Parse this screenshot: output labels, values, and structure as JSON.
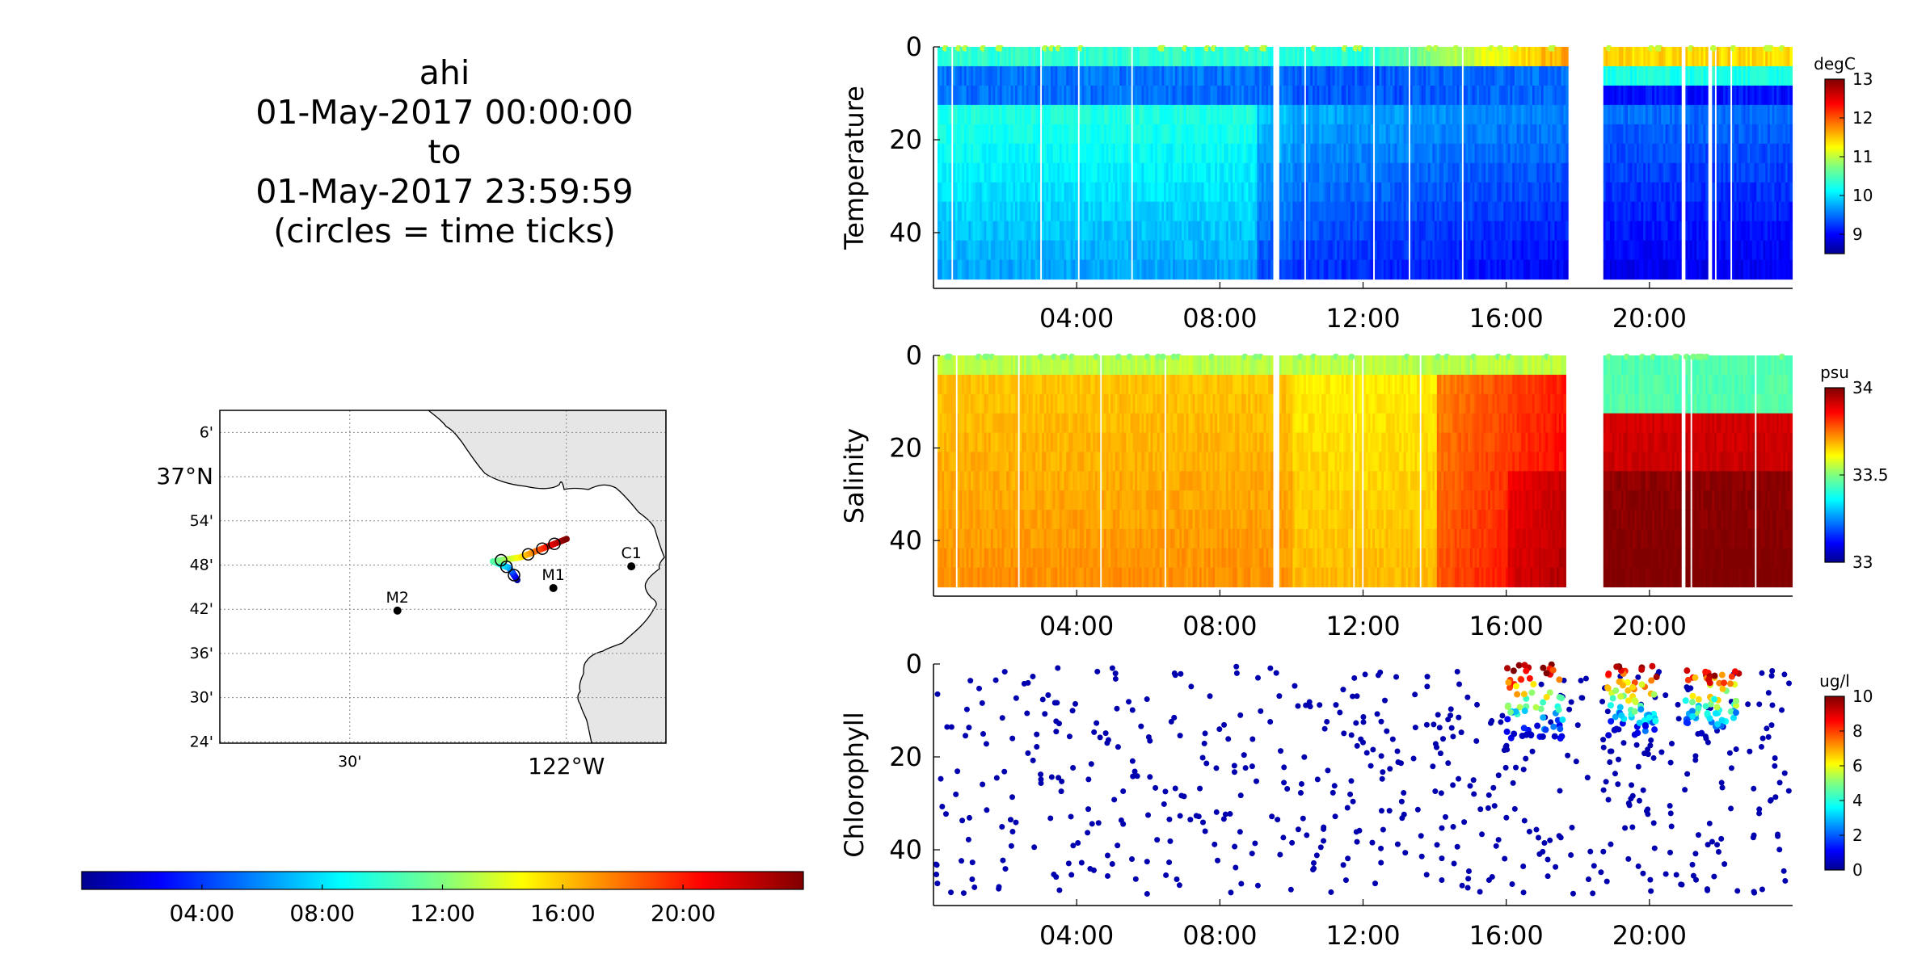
{
  "title": {
    "platform": "ahi",
    "start": "01-May-2017 00:00:00",
    "to": "to",
    "end": "01-May-2017 23:59:59",
    "note": "(circles = time ticks)"
  },
  "map": {
    "lat_ticks": [
      "6'",
      "37°N",
      "54'",
      "48'",
      "42'",
      "36'",
      "30'",
      "24'"
    ],
    "lat_values": [
      37.1,
      37.0,
      36.9,
      36.8,
      36.7,
      36.6,
      36.5,
      36.4
    ],
    "lon_ticks": [
      "30'",
      "122°W"
    ],
    "lon_values": [
      -122.5,
      -122.0
    ],
    "lat_range": [
      36.397,
      37.15
    ],
    "lon_range": [
      -122.8,
      -121.77
    ],
    "stations": [
      {
        "name": "M2",
        "lat": 36.697,
        "lon": -122.39
      },
      {
        "name": "M1",
        "lat": 36.748,
        "lon": -122.03
      },
      {
        "name": "C1",
        "lat": 36.797,
        "lon": -121.85
      }
    ],
    "track_colors": {
      "start": "#00008f",
      "end": "#ff5000"
    },
    "coast_fill": "#e6e6e6"
  },
  "time_colorbar": {
    "ticks": [
      "04:00",
      "08:00",
      "12:00",
      "16:00",
      "20:00"
    ],
    "tick_hours": [
      4,
      8,
      12,
      16,
      20
    ],
    "range_hours": [
      0,
      24
    ]
  },
  "chart_data": [
    {
      "type": "heatmap",
      "ylabel": "Temperature",
      "units": "degC",
      "x_range_hours": [
        0,
        24
      ],
      "ylim": [
        0,
        52
      ],
      "y_reversed": true,
      "yticks": [
        0,
        20,
        40
      ],
      "xticks": [
        "04:00",
        "08:00",
        "12:00",
        "16:00",
        "20:00"
      ],
      "xtick_hours": [
        4,
        8,
        12,
        16,
        20
      ],
      "clim": [
        8.5,
        13
      ],
      "cbar_ticks": [
        9,
        10,
        11,
        12,
        13
      ],
      "data_gaps_hours": [
        [
          9.45,
          9.65
        ],
        [
          17.7,
          18.65
        ],
        [
          20.85,
          21.0
        ]
      ],
      "surface_value": 11.0,
      "bottom_value": 9.6
    },
    {
      "type": "heatmap",
      "ylabel": "Salinity",
      "units": "psu",
      "x_range_hours": [
        0,
        24
      ],
      "ylim": [
        0,
        52
      ],
      "y_reversed": true,
      "yticks": [
        0,
        20,
        40
      ],
      "xticks": [
        "04:00",
        "08:00",
        "12:00",
        "16:00",
        "20:00"
      ],
      "xtick_hours": [
        4,
        8,
        12,
        16,
        20
      ],
      "clim": [
        33,
        34
      ],
      "cbar_ticks": [
        33,
        33.5,
        34
      ],
      "cbar_tick_labels": [
        "33",
        "33.5",
        "34"
      ],
      "data_gaps_hours": [
        [
          9.45,
          9.65
        ],
        [
          17.7,
          18.65
        ],
        [
          20.85,
          21.0
        ]
      ],
      "surface_value": 33.55,
      "bottom_value": 33.85
    },
    {
      "type": "scatter",
      "ylabel": "Chlorophyll",
      "units": "ug/l",
      "x_range_hours": [
        0,
        24
      ],
      "ylim": [
        0,
        52
      ],
      "y_reversed": true,
      "yticks": [
        0,
        20,
        40
      ],
      "xticks": [
        "04:00",
        "08:00",
        "12:00",
        "16:00",
        "20:00"
      ],
      "xtick_hours": [
        4,
        8,
        12,
        16,
        20
      ],
      "clim": [
        0,
        10
      ],
      "cbar_ticks": [
        0,
        2,
        4,
        6,
        8,
        10
      ],
      "background_value": 0.3,
      "bloom_windows_hours": [
        [
          16.0,
          17.6
        ],
        [
          18.8,
          20.2
        ],
        [
          21.0,
          22.5
        ]
      ],
      "bloom_peak_value": 10
    }
  ]
}
